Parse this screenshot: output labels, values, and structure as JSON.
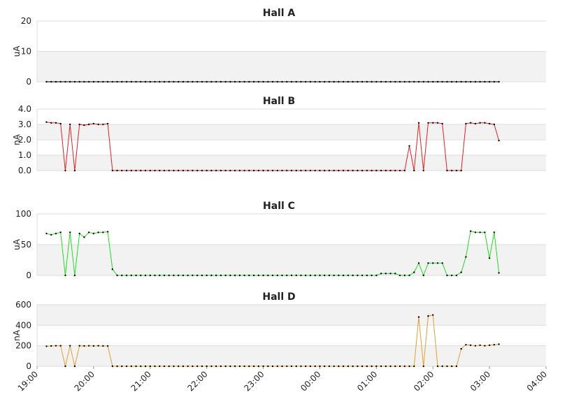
{
  "chart_data": [
    {
      "type": "line",
      "title": "Hall A",
      "ylabel": "uA",
      "color": "#000000",
      "ylim": [
        0,
        20
      ],
      "yticks": [
        0,
        10,
        20
      ],
      "xlim": [
        "19:00",
        "04:00"
      ],
      "x": [
        "19:10",
        "19:15",
        "19:20",
        "19:25",
        "19:30",
        "19:35",
        "19:40",
        "19:45",
        "19:50",
        "19:55",
        "20:00",
        "20:05",
        "20:10",
        "20:15",
        "20:20",
        "20:25",
        "20:30",
        "20:35",
        "20:40",
        "20:45",
        "20:50",
        "20:55",
        "21:00",
        "21:05",
        "21:10",
        "21:15",
        "21:20",
        "21:25",
        "21:30",
        "21:35",
        "21:40",
        "21:45",
        "21:50",
        "21:55",
        "22:00",
        "22:05",
        "22:10",
        "22:15",
        "22:20",
        "22:25",
        "22:30",
        "22:35",
        "22:40",
        "22:45",
        "22:50",
        "22:55",
        "23:00",
        "23:05",
        "23:10",
        "23:15",
        "23:20",
        "23:25",
        "23:30",
        "23:35",
        "23:40",
        "23:45",
        "23:50",
        "23:55",
        "00:00",
        "00:05",
        "00:10",
        "00:15",
        "00:20",
        "00:25",
        "00:30",
        "00:35",
        "00:40",
        "00:45",
        "00:50",
        "00:55",
        "01:00",
        "01:05",
        "01:10",
        "01:15",
        "01:20",
        "01:25",
        "01:30",
        "01:35",
        "01:40",
        "01:45",
        "01:50",
        "01:55",
        "02:00",
        "02:05",
        "02:10",
        "02:15",
        "02:20",
        "02:25",
        "02:30",
        "02:35",
        "02:40",
        "02:45",
        "02:50",
        "02:55",
        "03:00",
        "03:05",
        "03:10"
      ],
      "values": [
        0,
        0,
        0,
        0,
        0,
        0,
        0,
        0,
        0,
        0,
        0,
        0,
        0,
        0,
        0,
        0,
        0,
        0,
        0,
        0,
        0,
        0,
        0,
        0,
        0,
        0,
        0,
        0,
        0,
        0,
        0,
        0,
        0,
        0,
        0,
        0,
        0,
        0,
        0,
        0,
        0,
        0,
        0,
        0,
        0,
        0,
        0,
        0,
        0,
        0,
        0,
        0,
        0,
        0,
        0,
        0,
        0,
        0,
        0,
        0,
        0,
        0,
        0,
        0,
        0,
        0,
        0,
        0,
        0,
        0,
        0,
        0,
        0,
        0,
        0,
        0,
        0,
        0,
        0,
        0,
        0,
        0,
        0,
        0,
        0,
        0,
        0,
        0,
        0,
        0,
        0,
        0,
        0,
        0,
        0,
        0,
        0
      ]
    },
    {
      "type": "line",
      "title": "Hall B",
      "ylabel": "nA",
      "color": "#dd2222",
      "ylim": [
        0,
        4
      ],
      "yticks": [
        {
          "value": 0,
          "label": "0.0"
        },
        {
          "value": 1,
          "label": "1.0"
        },
        {
          "value": 2,
          "label": "2.0"
        },
        {
          "value": 3,
          "label": "3.0"
        },
        {
          "value": 4,
          "label": "4.0"
        }
      ],
      "xlim": [
        "19:00",
        "04:00"
      ],
      "x": [
        "19:10",
        "19:15",
        "19:20",
        "19:25",
        "19:30",
        "19:35",
        "19:40",
        "19:45",
        "19:50",
        "19:55",
        "20:00",
        "20:05",
        "20:10",
        "20:15",
        "20:20",
        "20:25",
        "20:30",
        "20:35",
        "20:40",
        "20:45",
        "20:50",
        "20:55",
        "21:00",
        "21:05",
        "21:10",
        "21:15",
        "21:20",
        "21:25",
        "21:30",
        "21:35",
        "21:40",
        "21:45",
        "21:50",
        "21:55",
        "22:00",
        "22:05",
        "22:10",
        "22:15",
        "22:20",
        "22:25",
        "22:30",
        "22:35",
        "22:40",
        "22:45",
        "22:50",
        "22:55",
        "23:00",
        "23:05",
        "23:10",
        "23:15",
        "23:20",
        "23:25",
        "23:30",
        "23:35",
        "23:40",
        "23:45",
        "23:50",
        "23:55",
        "00:00",
        "00:05",
        "00:10",
        "00:15",
        "00:20",
        "00:25",
        "00:30",
        "00:35",
        "00:40",
        "00:45",
        "00:50",
        "00:55",
        "01:00",
        "01:05",
        "01:10",
        "01:15",
        "01:20",
        "01:25",
        "01:30",
        "01:35",
        "01:40",
        "01:45",
        "01:50",
        "01:55",
        "02:00",
        "02:05",
        "02:10",
        "02:15",
        "02:20",
        "02:25",
        "02:30",
        "02:35",
        "02:40",
        "02:45",
        "02:50",
        "02:55",
        "03:00",
        "03:05",
        "03:10"
      ],
      "values": [
        3.15,
        3.1,
        3.1,
        3.05,
        0,
        3.0,
        0,
        3.0,
        2.95,
        3.0,
        3.05,
        3.0,
        3.0,
        3.05,
        0,
        0,
        0,
        0,
        0,
        0,
        0,
        0,
        0,
        0,
        0,
        0,
        0,
        0,
        0,
        0,
        0,
        0,
        0,
        0,
        0,
        0,
        0,
        0,
        0,
        0,
        0,
        0,
        0,
        0,
        0,
        0,
        0,
        0,
        0,
        0,
        0,
        0,
        0,
        0,
        0,
        0,
        0,
        0,
        0,
        0,
        0,
        0,
        0,
        0,
        0,
        0,
        0,
        0,
        0,
        0,
        0,
        0,
        0,
        0,
        0,
        0,
        0,
        1.6,
        0,
        3.1,
        0,
        3.1,
        3.1,
        3.1,
        3.05,
        0,
        0,
        0,
        0,
        3.05,
        3.1,
        3.05,
        3.1,
        3.1,
        3.05,
        3.0,
        1.95
      ]
    },
    {
      "type": "line",
      "title": "Hall C",
      "ylabel": "uA",
      "color": "#22dd22",
      "ylim": [
        0,
        100
      ],
      "yticks": [
        0,
        50,
        100
      ],
      "xlim": [
        "19:00",
        "04:00"
      ],
      "x": [
        "19:10",
        "19:15",
        "19:20",
        "19:25",
        "19:30",
        "19:35",
        "19:40",
        "19:45",
        "19:50",
        "19:55",
        "20:00",
        "20:05",
        "20:10",
        "20:15",
        "20:20",
        "20:25",
        "20:30",
        "20:35",
        "20:40",
        "20:45",
        "20:50",
        "20:55",
        "21:00",
        "21:05",
        "21:10",
        "21:15",
        "21:20",
        "21:25",
        "21:30",
        "21:35",
        "21:40",
        "21:45",
        "21:50",
        "21:55",
        "22:00",
        "22:05",
        "22:10",
        "22:15",
        "22:20",
        "22:25",
        "22:30",
        "22:35",
        "22:40",
        "22:45",
        "22:50",
        "22:55",
        "23:00",
        "23:05",
        "23:10",
        "23:15",
        "23:20",
        "23:25",
        "23:30",
        "23:35",
        "23:40",
        "23:45",
        "23:50",
        "23:55",
        "00:00",
        "00:05",
        "00:10",
        "00:15",
        "00:20",
        "00:25",
        "00:30",
        "00:35",
        "00:40",
        "00:45",
        "00:50",
        "00:55",
        "01:00",
        "01:05",
        "01:10",
        "01:15",
        "01:20",
        "01:25",
        "01:30",
        "01:35",
        "01:40",
        "01:45",
        "01:50",
        "01:55",
        "02:00",
        "02:05",
        "02:10",
        "02:15",
        "02:20",
        "02:25",
        "02:30",
        "02:35",
        "02:40",
        "02:45",
        "02:50",
        "02:55",
        "03:00",
        "03:05",
        "03:10"
      ],
      "values": [
        68,
        66,
        68,
        70,
        0,
        70,
        0,
        68,
        62,
        70,
        68,
        70,
        70,
        71,
        10,
        0,
        0,
        0,
        0,
        0,
        0,
        0,
        0,
        0,
        0,
        0,
        0,
        0,
        0,
        0,
        0,
        0,
        0,
        0,
        0,
        0,
        0,
        0,
        0,
        0,
        0,
        0,
        0,
        0,
        0,
        0,
        0,
        0,
        0,
        0,
        0,
        0,
        0,
        0,
        0,
        0,
        0,
        0,
        0,
        0,
        0,
        0,
        0,
        0,
        0,
        0,
        0,
        0,
        0,
        0,
        0,
        3,
        3,
        3,
        3,
        0,
        0,
        0,
        5,
        20,
        0,
        20,
        20,
        20,
        20,
        0,
        0,
        0,
        5,
        30,
        72,
        70,
        70,
        70,
        28,
        70,
        4
      ]
    },
    {
      "type": "line",
      "title": "Hall D",
      "ylabel": "nA",
      "color": "#e0a030",
      "ylim": [
        0,
        600
      ],
      "yticks": [
        0,
        200,
        400,
        600
      ],
      "xlim": [
        "19:00",
        "04:00"
      ],
      "xticks": [
        "19:00",
        "20:00",
        "21:00",
        "22:00",
        "23:00",
        "00:00",
        "01:00",
        "02:00",
        "03:00",
        "04:00"
      ],
      "x": [
        "19:10",
        "19:15",
        "19:20",
        "19:25",
        "19:30",
        "19:35",
        "19:40",
        "19:45",
        "19:50",
        "19:55",
        "20:00",
        "20:05",
        "20:10",
        "20:15",
        "20:20",
        "20:25",
        "20:30",
        "20:35",
        "20:40",
        "20:45",
        "20:50",
        "20:55",
        "21:00",
        "21:05",
        "21:10",
        "21:15",
        "21:20",
        "21:25",
        "21:30",
        "21:35",
        "21:40",
        "21:45",
        "21:50",
        "21:55",
        "22:00",
        "22:05",
        "22:10",
        "22:15",
        "22:20",
        "22:25",
        "22:30",
        "22:35",
        "22:40",
        "22:45",
        "22:50",
        "22:55",
        "23:00",
        "23:05",
        "23:10",
        "23:15",
        "23:20",
        "23:25",
        "23:30",
        "23:35",
        "23:40",
        "23:45",
        "23:50",
        "23:55",
        "00:00",
        "00:05",
        "00:10",
        "00:15",
        "00:20",
        "00:25",
        "00:30",
        "00:35",
        "00:40",
        "00:45",
        "00:50",
        "00:55",
        "01:00",
        "01:05",
        "01:10",
        "01:15",
        "01:20",
        "01:25",
        "01:30",
        "01:35",
        "01:40",
        "01:45",
        "01:50",
        "01:55",
        "02:00",
        "02:05",
        "02:10",
        "02:15",
        "02:20",
        "02:25",
        "02:30",
        "02:35",
        "02:40",
        "02:45",
        "02:50",
        "02:55",
        "03:00",
        "03:05",
        "03:10"
      ],
      "values": [
        195,
        198,
        200,
        200,
        0,
        200,
        0,
        200,
        198,
        200,
        198,
        200,
        198,
        198,
        0,
        0,
        0,
        0,
        0,
        0,
        0,
        0,
        0,
        0,
        0,
        0,
        0,
        0,
        0,
        0,
        0,
        0,
        0,
        0,
        0,
        0,
        0,
        0,
        0,
        0,
        0,
        0,
        0,
        0,
        0,
        0,
        0,
        0,
        0,
        0,
        0,
        0,
        0,
        0,
        0,
        0,
        0,
        0,
        0,
        0,
        0,
        0,
        0,
        0,
        0,
        0,
        0,
        0,
        0,
        0,
        0,
        0,
        0,
        0,
        0,
        0,
        0,
        0,
        0,
        480,
        0,
        490,
        500,
        0,
        0,
        0,
        0,
        0,
        170,
        210,
        205,
        200,
        205,
        200,
        205,
        210,
        215
      ]
    }
  ]
}
